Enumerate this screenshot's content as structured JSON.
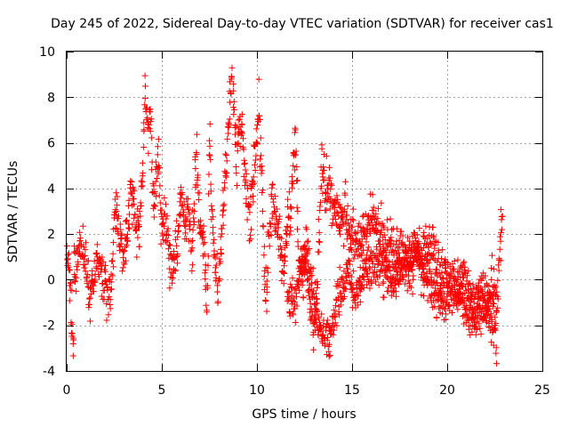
{
  "chart_data": {
    "type": "scatter",
    "title": "Day 245 of 2022, Sidereal Day-to-day VTEC variation (SDTVAR) for receiver cas1",
    "xlabel": "GPS time / hours",
    "ylabel": "SDTVAR / TECUs",
    "xlim": [
      0,
      25
    ],
    "ylim": [
      -4,
      10
    ],
    "xticks": [
      0,
      5,
      10,
      15,
      20,
      25
    ],
    "yticks": [
      -4,
      -2,
      0,
      2,
      4,
      6,
      8,
      10
    ],
    "xtick_labels": [
      "0",
      "5",
      "10",
      "15",
      "20",
      "25"
    ],
    "ytick_labels": [
      "-4",
      "-2",
      "0",
      "2",
      "4",
      "6",
      "8",
      "10"
    ],
    "grid": true,
    "marker": "plus",
    "color": "#ff0000",
    "series": [
      {
        "name": "SDTVAR",
        "trend": [
          [
            0.0,
            0.2
          ],
          [
            0.1,
            0.8
          ],
          [
            0.2,
            -0.8
          ],
          [
            0.3,
            -2.3
          ],
          [
            0.35,
            -3.2
          ],
          [
            0.4,
            0.5
          ],
          [
            0.6,
            1.2
          ],
          [
            0.8,
            1.4
          ],
          [
            1.0,
            0.5
          ],
          [
            1.2,
            -0.8
          ],
          [
            1.4,
            -0.2
          ],
          [
            1.6,
            1.0
          ],
          [
            1.8,
            0.2
          ],
          [
            2.0,
            -0.3
          ],
          [
            2.2,
            -0.9
          ],
          [
            2.4,
            0.5
          ],
          [
            2.6,
            3.5
          ],
          [
            2.8,
            1.8
          ],
          [
            3.0,
            0.8
          ],
          [
            3.2,
            2.2
          ],
          [
            3.4,
            4.2
          ],
          [
            3.6,
            3.0
          ],
          [
            3.8,
            1.8
          ],
          [
            4.0,
            5.0
          ],
          [
            4.1,
            8.1
          ],
          [
            4.2,
            7.8
          ],
          [
            4.3,
            6.5
          ],
          [
            4.4,
            7.2
          ],
          [
            4.5,
            4.5
          ],
          [
            4.6,
            3.2
          ],
          [
            4.8,
            5.5
          ],
          [
            5.0,
            2.5
          ],
          [
            5.2,
            3.0
          ],
          [
            5.4,
            1.0
          ],
          [
            5.6,
            0.2
          ],
          [
            5.8,
            1.5
          ],
          [
            6.0,
            3.8
          ],
          [
            6.2,
            2.5
          ],
          [
            6.4,
            3.2
          ],
          [
            6.6,
            1.0
          ],
          [
            6.8,
            5.5
          ],
          [
            7.0,
            2.8
          ],
          [
            7.2,
            1.5
          ],
          [
            7.4,
            -1.2
          ],
          [
            7.5,
            6.5
          ],
          [
            7.6,
            3.5
          ],
          [
            7.8,
            0.5
          ],
          [
            8.0,
            -0.3
          ],
          [
            8.7,
            9.5
          ],
          [
            8.8,
            7.5
          ],
          [
            8.9,
            5.3
          ],
          [
            9.0,
            6.0
          ],
          [
            9.2,
            6.9
          ],
          [
            9.4,
            4.3
          ],
          [
            9.6,
            2.5
          ],
          [
            9.8,
            4.5
          ],
          [
            10.0,
            6.5
          ],
          [
            10.1,
            7.3
          ],
          [
            10.2,
            5.5
          ],
          [
            10.3,
            3.5
          ],
          [
            10.4,
            0.2
          ],
          [
            10.5,
            -1.0
          ],
          [
            10.6,
            1.8
          ],
          [
            10.8,
            3.2
          ],
          [
            11.0,
            2.8
          ],
          [
            11.2,
            1.5
          ],
          [
            11.4,
            0.0
          ],
          [
            11.6,
            2.5
          ],
          [
            11.8,
            3.2
          ],
          [
            12.0,
            6.6
          ],
          [
            12.1,
            4.0
          ],
          [
            12.2,
            1.0
          ],
          [
            12.4,
            -0.5
          ],
          [
            12.6,
            2.0
          ],
          [
            12.8,
            -1.5
          ],
          [
            13.0,
            -2.5
          ],
          [
            13.2,
            0.2
          ],
          [
            13.4,
            5.2
          ],
          [
            13.6,
            3.8
          ],
          [
            13.8,
            4.5
          ],
          [
            14.0,
            3.0
          ],
          [
            14.2,
            3.1
          ],
          [
            14.4,
            2.9
          ],
          [
            14.6,
            2.8
          ],
          [
            14.8,
            2.5
          ],
          [
            15.0,
            2.0
          ],
          [
            15.2,
            1.5
          ],
          [
            15.4,
            1.5
          ],
          [
            15.6,
            2.2
          ],
          [
            15.8,
            2.6
          ],
          [
            16.0,
            2.8
          ],
          [
            16.2,
            2.5
          ],
          [
            16.4,
            2.2
          ],
          [
            16.6,
            1.8
          ],
          [
            16.8,
            1.5
          ],
          [
            17.0,
            1.6
          ],
          [
            17.2,
            1.2
          ],
          [
            17.4,
            1.5
          ],
          [
            17.6,
            1.3
          ],
          [
            17.8,
            1.0
          ],
          [
            18.0,
            1.1
          ],
          [
            18.2,
            1.0
          ],
          [
            18.4,
            1.3
          ],
          [
            18.6,
            1.0
          ],
          [
            18.8,
            1.2
          ],
          [
            19.0,
            1.5
          ],
          [
            19.2,
            1.5
          ],
          [
            19.4,
            1.0
          ],
          [
            19.6,
            0.4
          ],
          [
            19.8,
            0.2
          ],
          [
            20.0,
            0.2
          ],
          [
            20.2,
            -0.2
          ],
          [
            20.4,
            -0.5
          ],
          [
            20.6,
            -0.4
          ],
          [
            20.8,
            0.3
          ],
          [
            21.0,
            0.0
          ],
          [
            21.2,
            -0.5
          ],
          [
            21.4,
            -1.2
          ],
          [
            21.6,
            -0.6
          ],
          [
            21.8,
            0.0
          ],
          [
            22.0,
            -0.8
          ],
          [
            22.2,
            -0.5
          ],
          [
            22.4,
            0.0
          ],
          [
            22.6,
            -1.2
          ],
          [
            22.8,
            1.8
          ],
          [
            22.9,
            2.8
          ]
        ],
        "secondary_trend": [
          [
            11.6,
            -0.5
          ],
          [
            12.0,
            -1.2
          ],
          [
            12.4,
            1.0
          ],
          [
            12.8,
            0.2
          ],
          [
            13.2,
            -1.8
          ],
          [
            13.6,
            -2.5
          ],
          [
            14.0,
            -2.0
          ],
          [
            14.4,
            -0.5
          ],
          [
            14.8,
            0.2
          ],
          [
            15.2,
            -0.8
          ],
          [
            15.6,
            0.5
          ],
          [
            16.0,
            0.3
          ],
          [
            16.4,
            0.8
          ],
          [
            16.8,
            0.2
          ],
          [
            17.2,
            -0.2
          ],
          [
            17.6,
            0.5
          ],
          [
            18.0,
            0.3
          ],
          [
            18.4,
            1.2
          ],
          [
            18.8,
            0.2
          ],
          [
            19.2,
            -0.3
          ],
          [
            19.6,
            -1.2
          ],
          [
            20.0,
            -0.5
          ],
          [
            20.4,
            -0.2
          ],
          [
            20.8,
            -1.0
          ],
          [
            21.2,
            -1.5
          ],
          [
            21.6,
            -1.8
          ],
          [
            22.0,
            -1.2
          ],
          [
            22.4,
            -2.0
          ],
          [
            22.6,
            -3.0
          ]
        ]
      }
    ]
  }
}
